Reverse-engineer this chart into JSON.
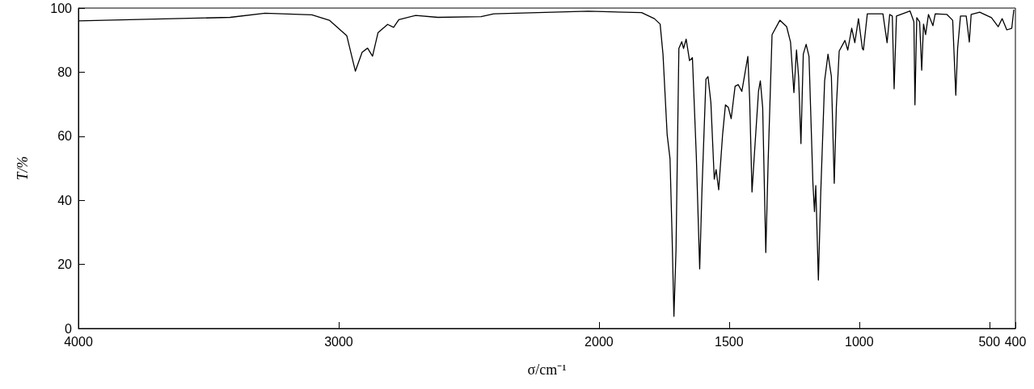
{
  "chart_data": {
    "type": "line",
    "xlabel": "σ/cm⁻¹",
    "ylabel": "T/%",
    "xlim": [
      4000,
      400
    ],
    "xticks": [
      4000,
      3000,
      2000,
      1500,
      1000,
      500,
      400
    ],
    "ylim": [
      0,
      100
    ],
    "yticks": [
      0,
      20,
      40,
      60,
      80,
      100
    ],
    "grid": false,
    "marker": "none",
    "line_style": "solid",
    "series": [
      {
        "color": "#000000",
        "x": [
          4000,
          3417,
          3283,
          3103,
          3036,
          2969,
          2936,
          2910,
          2889,
          2870,
          2849,
          2812,
          2789,
          2769,
          2704,
          2619,
          2453,
          2404,
          2040,
          1836,
          1787,
          1765,
          1754,
          1738,
          1727,
          1719,
          1712,
          1704,
          1693,
          1682,
          1675,
          1665,
          1652,
          1641,
          1626,
          1613,
          1604,
          1589,
          1581,
          1570,
          1557,
          1550,
          1540,
          1525,
          1514,
          1503,
          1492,
          1477,
          1465,
          1451,
          1428,
          1421,
          1412,
          1402,
          1387,
          1380,
          1371,
          1359,
          1350,
          1335,
          1305,
          1279,
          1264,
          1251,
          1241,
          1233,
          1224,
          1215,
          1204,
          1193,
          1178,
          1172,
          1167,
          1157,
          1148,
          1133,
          1120,
          1107,
          1096,
          1088,
          1077,
          1055,
          1044,
          1029,
          1017,
          1003,
          988,
          984,
          969,
          909,
          893,
          883,
          873,
          866,
          857,
          805,
          790,
          786,
          779,
          768,
          760,
          753,
          745,
          734,
          717,
          708,
          663,
          641,
          629,
          622,
          611,
          589,
          577,
          570,
          537,
          492,
          466,
          451,
          433,
          414,
          406
        ],
        "values": [
          96.0,
          97.1,
          98.4,
          97.9,
          96.2,
          91.4,
          80.3,
          86.2,
          87.5,
          85.0,
          92.3,
          94.9,
          94.0,
          96.4,
          97.7,
          97.1,
          97.3,
          98.2,
          99.0,
          98.6,
          96.7,
          95.0,
          85.6,
          60.5,
          53.0,
          28.7,
          3.8,
          24.4,
          87.4,
          89.5,
          87.4,
          90.3,
          83.6,
          84.5,
          53.9,
          18.6,
          43.8,
          77.8,
          78.6,
          70.5,
          46.6,
          49.6,
          43.3,
          60.5,
          69.8,
          69.0,
          65.5,
          75.6,
          76.1,
          74.0,
          84.9,
          71.5,
          42.6,
          55.4,
          74.0,
          77.3,
          69.0,
          23.7,
          52.1,
          91.7,
          96.2,
          94.2,
          89.4,
          73.6,
          86.9,
          78.6,
          57.7,
          85.6,
          88.7,
          84.9,
          45.3,
          36.5,
          44.6,
          15.1,
          42.1,
          77.3,
          85.6,
          78.6,
          45.3,
          69.0,
          86.6,
          89.9,
          86.9,
          93.7,
          89.2,
          96.7,
          87.4,
          86.9,
          98.2,
          98.2,
          89.2,
          98.0,
          97.5,
          74.8,
          97.5,
          99.1,
          95.7,
          69.8,
          97.0,
          95.7,
          80.6,
          95.0,
          91.7,
          98.0,
          94.5,
          98.2,
          98.0,
          96.2,
          72.8,
          87.4,
          97.5,
          97.5,
          89.4,
          98.0,
          98.7,
          97.0,
          94.2,
          96.7,
          93.2,
          93.7,
          99.5
        ]
      }
    ]
  }
}
